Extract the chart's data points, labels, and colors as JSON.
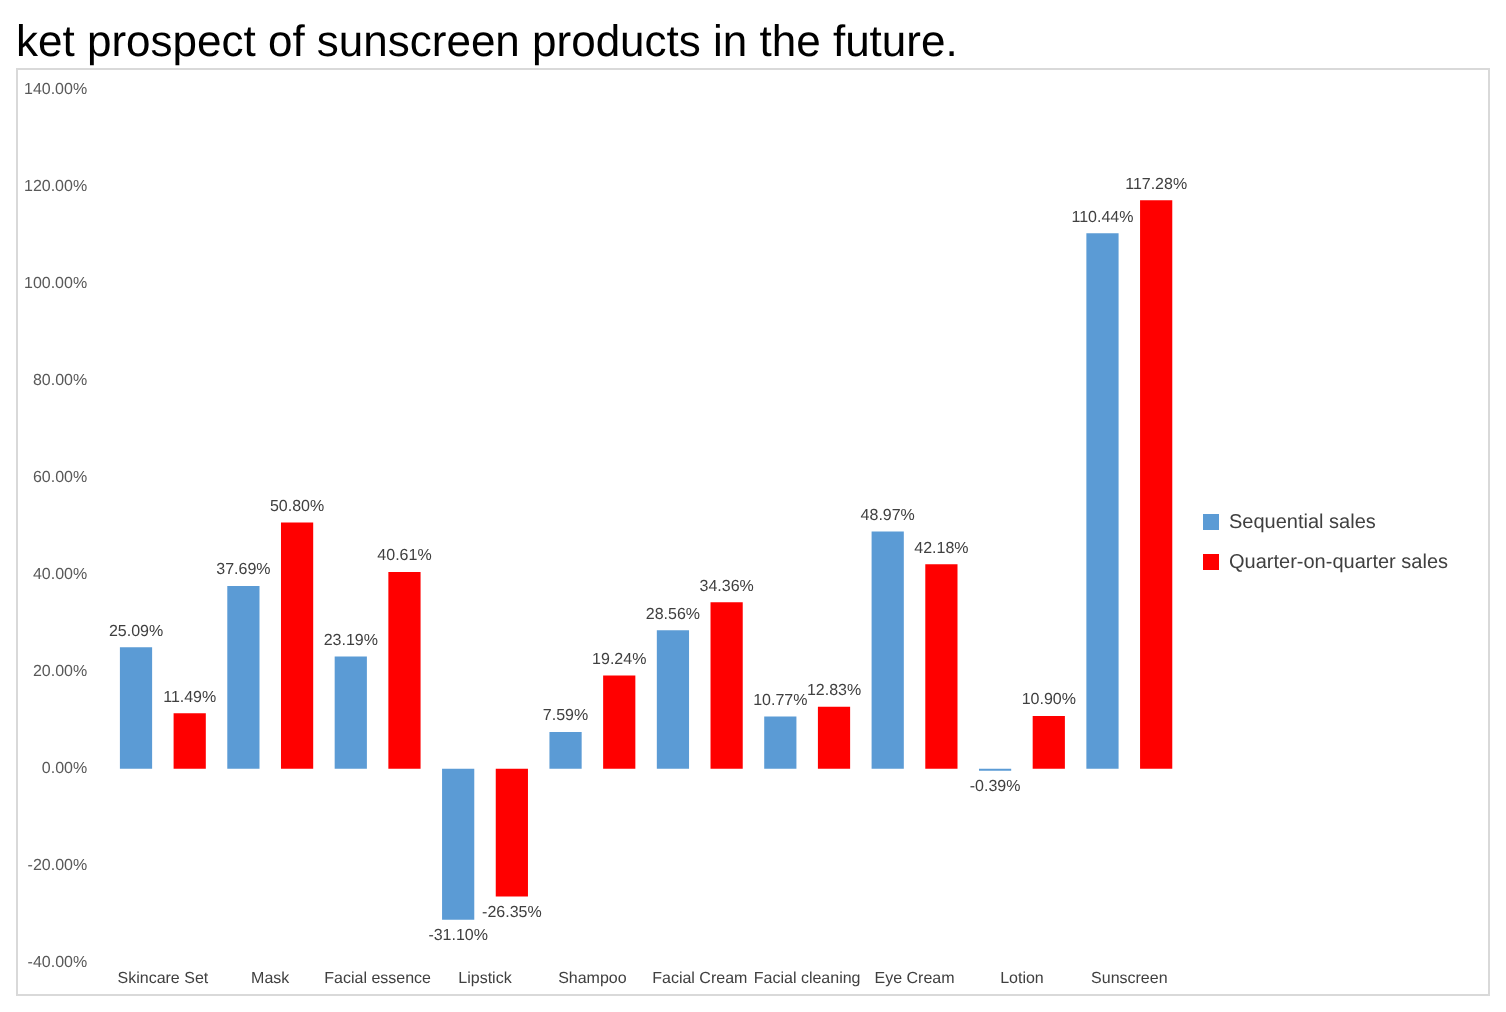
{
  "chart_data": {
    "type": "bar",
    "title": "ket prospect of sunscreen products in the future.",
    "categories": [
      "Skincare Set",
      "Mask",
      "Facial essence",
      "Lipstick",
      "Shampoo",
      "Facial Cream",
      "Facial cleaning",
      "Eye Cream",
      "Lotion",
      "Sunscreen"
    ],
    "series": [
      {
        "name": "Sequential sales",
        "color": "#5b9bd5",
        "values": [
          25.09,
          37.69,
          23.19,
          -31.1,
          7.59,
          28.56,
          10.77,
          48.97,
          -0.39,
          110.44
        ],
        "value_labels": [
          "25.09%",
          "37.69%",
          "23.19%",
          "-31.10%",
          "7.59%",
          "28.56%",
          "10.77%",
          "48.97%",
          "-0.39%",
          "110.44%"
        ]
      },
      {
        "name": "Quarter-on-quarter sales",
        "color": "#ff0000",
        "values": [
          11.49,
          50.8,
          40.61,
          -26.35,
          19.24,
          34.36,
          12.83,
          42.18,
          10.9,
          117.28
        ],
        "value_labels": [
          "11.49%",
          "50.80%",
          "40.61%",
          "-26.35%",
          "19.24%",
          "34.36%",
          "12.83%",
          "42.18%",
          "10.90%",
          "117.28%"
        ]
      }
    ],
    "ylim": [
      -40,
      140
    ],
    "yticks": [
      {
        "value": -40,
        "label": "-40.00%"
      },
      {
        "value": -20,
        "label": "-20.00%"
      },
      {
        "value": 0,
        "label": "0.00%"
      },
      {
        "value": 20,
        "label": "20.00%"
      },
      {
        "value": 40,
        "label": "40.00%"
      },
      {
        "value": 60,
        "label": "60.00%"
      },
      {
        "value": 80,
        "label": "80.00%"
      },
      {
        "value": 100,
        "label": "100.00%"
      },
      {
        "value": 120,
        "label": "120.00%"
      },
      {
        "value": 140,
        "label": "140.00%"
      }
    ],
    "grid": false,
    "legend": "right"
  }
}
